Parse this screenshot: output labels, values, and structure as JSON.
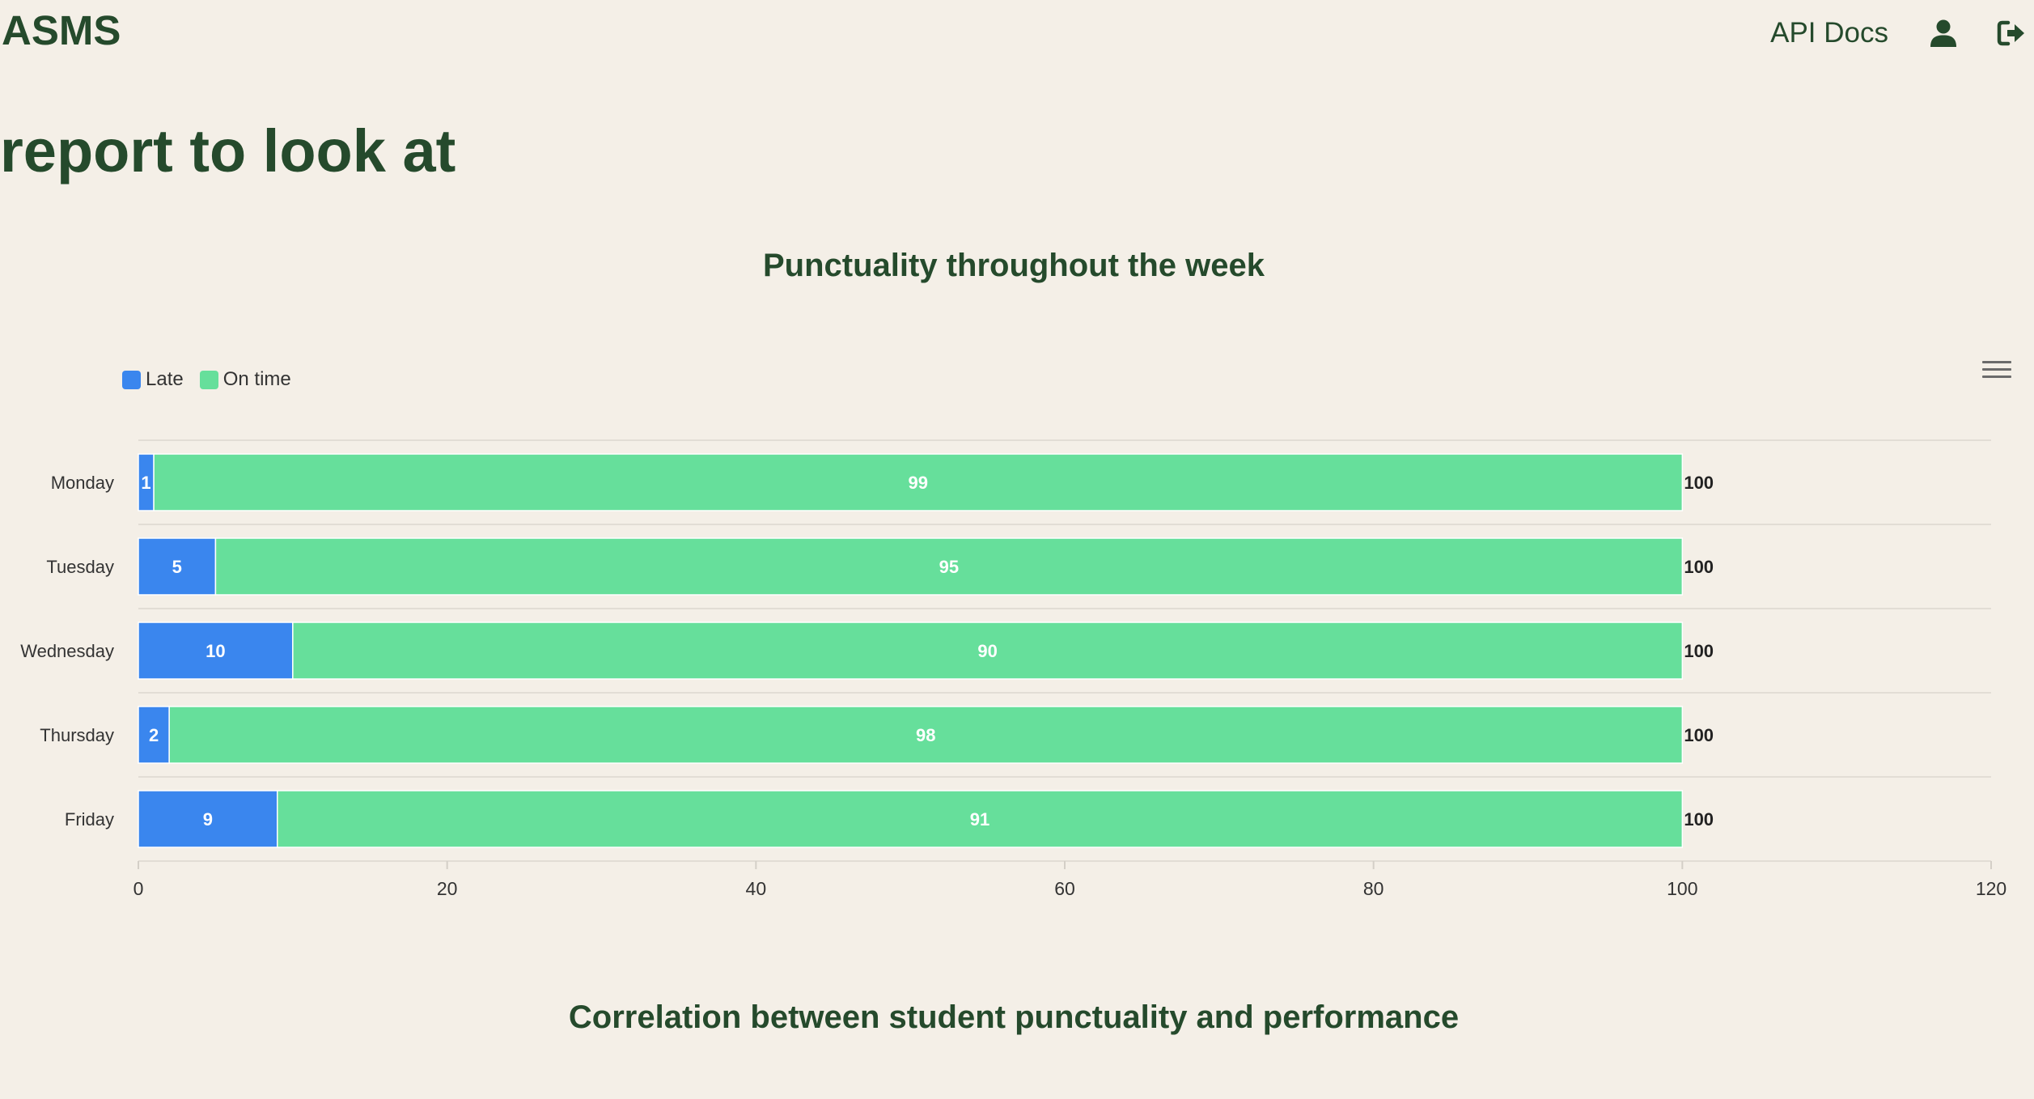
{
  "header": {
    "brand": "ASMS",
    "api_docs_label": "API Docs",
    "user_icon": "user-icon",
    "logout_icon": "sign-out-icon"
  },
  "page": {
    "title": "report to look at"
  },
  "chart_titles": {
    "punctuality": "Punctuality throughout the week",
    "correlation": "Correlation between student punctuality and performance"
  },
  "legend": {
    "late": "Late",
    "on_time": "On time"
  },
  "colors": {
    "background": "#f4efe7",
    "heading": "#254a2c",
    "late": "#3a86ee",
    "on_time": "#66df9b"
  },
  "chart_data": {
    "type": "bar",
    "orientation": "horizontal",
    "stacked": true,
    "title": "Punctuality throughout the week",
    "categories": [
      "Monday",
      "Tuesday",
      "Wednesday",
      "Thursday",
      "Friday"
    ],
    "series": [
      {
        "name": "Late",
        "values": [
          1,
          5,
          10,
          2,
          9
        ]
      },
      {
        "name": "On time",
        "values": [
          99,
          95,
          90,
          98,
          91
        ]
      }
    ],
    "totals": [
      100,
      100,
      100,
      100,
      100
    ],
    "xlim": [
      0,
      120
    ],
    "xticks": [
      0,
      20,
      40,
      60,
      80,
      100,
      120
    ],
    "legend_position": "top-left",
    "grid": true
  }
}
